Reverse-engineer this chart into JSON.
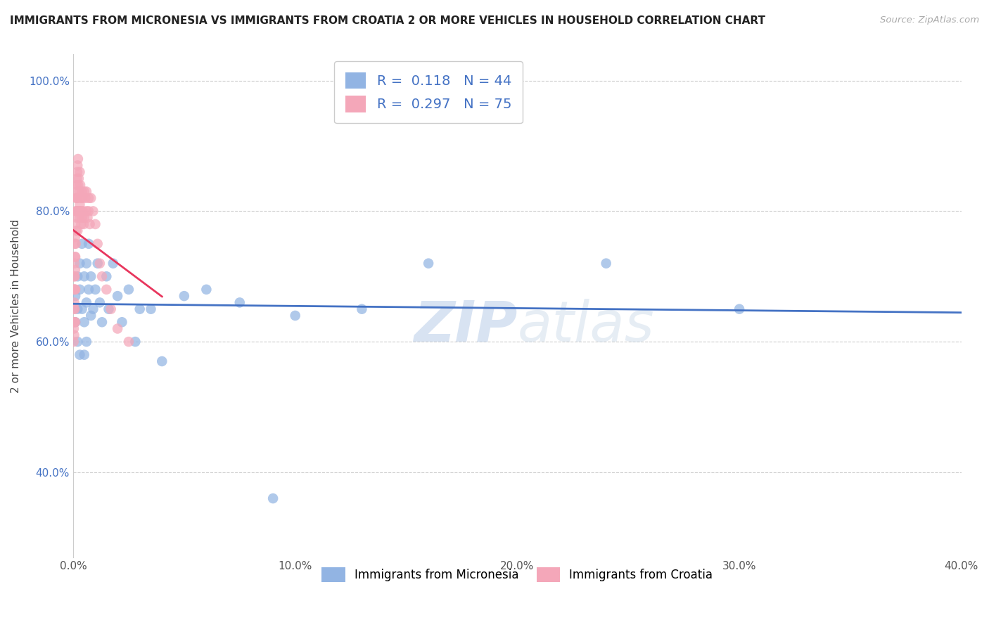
{
  "title": "IMMIGRANTS FROM MICRONESIA VS IMMIGRANTS FROM CROATIA 2 OR MORE VEHICLES IN HOUSEHOLD CORRELATION CHART",
  "source": "Source: ZipAtlas.com",
  "ylabel": "2 or more Vehicles in Household",
  "xlim": [
    0.0,
    0.4
  ],
  "ylim": [
    0.27,
    1.04
  ],
  "xticks": [
    0.0,
    0.1,
    0.2,
    0.3,
    0.4
  ],
  "xtick_labels": [
    "0.0%",
    "10.0%",
    "20.0%",
    "30.0%",
    "40.0%"
  ],
  "yticks": [
    0.4,
    0.6,
    0.8,
    1.0
  ],
  "ytick_labels": [
    "40.0%",
    "60.0%",
    "80.0%",
    "100.0%"
  ],
  "legend_r_micronesia": "0.118",
  "legend_n_micronesia": "44",
  "legend_r_croatia": "0.297",
  "legend_n_croatia": "75",
  "color_micronesia": "#92b4e3",
  "color_croatia": "#f4a7b9",
  "color_line_micronesia": "#4472c4",
  "color_line_croatia": "#e8365d",
  "watermark_zip": "ZIP",
  "watermark_atlas": "atlas",
  "background_color": "#ffffff",
  "micronesia_x": [
    0.001,
    0.001,
    0.002,
    0.002,
    0.002,
    0.003,
    0.003,
    0.003,
    0.004,
    0.004,
    0.005,
    0.005,
    0.005,
    0.006,
    0.006,
    0.006,
    0.007,
    0.007,
    0.008,
    0.008,
    0.009,
    0.01,
    0.011,
    0.012,
    0.013,
    0.015,
    0.016,
    0.018,
    0.02,
    0.022,
    0.025,
    0.028,
    0.03,
    0.035,
    0.04,
    0.05,
    0.06,
    0.075,
    0.09,
    0.1,
    0.13,
    0.16,
    0.24,
    0.3
  ],
  "micronesia_y": [
    0.63,
    0.67,
    0.7,
    0.65,
    0.6,
    0.68,
    0.72,
    0.58,
    0.75,
    0.65,
    0.7,
    0.63,
    0.58,
    0.72,
    0.66,
    0.6,
    0.75,
    0.68,
    0.64,
    0.7,
    0.65,
    0.68,
    0.72,
    0.66,
    0.63,
    0.7,
    0.65,
    0.72,
    0.67,
    0.63,
    0.68,
    0.6,
    0.65,
    0.65,
    0.57,
    0.67,
    0.68,
    0.66,
    0.36,
    0.64,
    0.65,
    0.72,
    0.72,
    0.65
  ],
  "croatia_x": [
    0.0002,
    0.0003,
    0.0003,
    0.0004,
    0.0004,
    0.0005,
    0.0005,
    0.0005,
    0.0006,
    0.0006,
    0.0006,
    0.0007,
    0.0007,
    0.0007,
    0.0008,
    0.0008,
    0.0009,
    0.0009,
    0.001,
    0.001,
    0.001,
    0.001,
    0.0012,
    0.0012,
    0.0013,
    0.0013,
    0.0014,
    0.0015,
    0.0015,
    0.0016,
    0.0017,
    0.0017,
    0.0018,
    0.0019,
    0.002,
    0.002,
    0.002,
    0.0022,
    0.0023,
    0.0024,
    0.0025,
    0.0026,
    0.0027,
    0.0028,
    0.003,
    0.003,
    0.0032,
    0.0033,
    0.0035,
    0.0036,
    0.0038,
    0.004,
    0.004,
    0.0042,
    0.0045,
    0.0048,
    0.005,
    0.005,
    0.0055,
    0.006,
    0.006,
    0.0065,
    0.007,
    0.007,
    0.0075,
    0.008,
    0.009,
    0.01,
    0.011,
    0.012,
    0.013,
    0.015,
    0.017,
    0.02,
    0.025
  ],
  "croatia_y": [
    0.6,
    0.65,
    0.62,
    0.68,
    0.63,
    0.7,
    0.66,
    0.61,
    0.72,
    0.68,
    0.63,
    0.75,
    0.7,
    0.65,
    0.73,
    0.68,
    0.76,
    0.71,
    0.78,
    0.73,
    0.68,
    0.63,
    0.8,
    0.75,
    0.82,
    0.77,
    0.8,
    0.84,
    0.79,
    0.82,
    0.85,
    0.8,
    0.83,
    0.86,
    0.87,
    0.82,
    0.77,
    0.88,
    0.84,
    0.8,
    0.85,
    0.8,
    0.83,
    0.79,
    0.86,
    0.81,
    0.84,
    0.8,
    0.82,
    0.78,
    0.8,
    0.83,
    0.79,
    0.82,
    0.8,
    0.78,
    0.83,
    0.79,
    0.82,
    0.8,
    0.83,
    0.79,
    0.82,
    0.8,
    0.78,
    0.82,
    0.8,
    0.78,
    0.75,
    0.72,
    0.7,
    0.68,
    0.65,
    0.62,
    0.6
  ]
}
